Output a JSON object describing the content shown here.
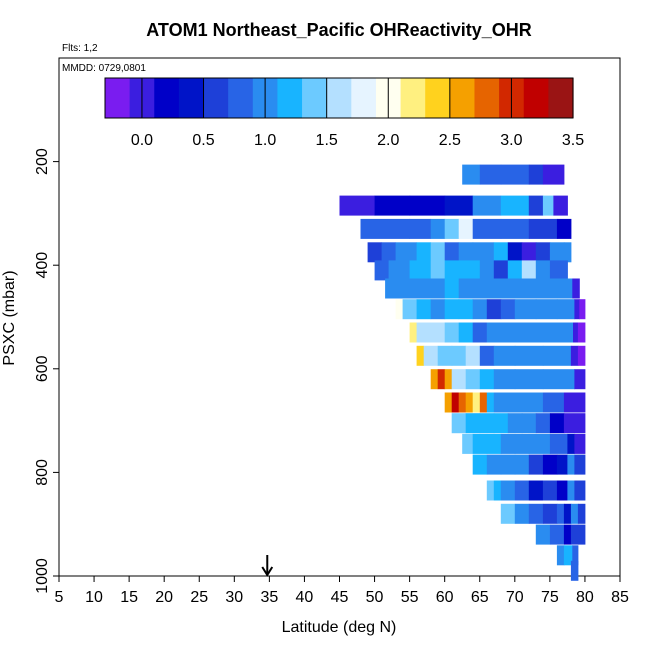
{
  "chart_data": {
    "type": "heatmap",
    "title": "ATOM1 Northeast_Pacific OHReactivity_OHR",
    "flights_label": "Flts: 1,2",
    "date_label": "MMDD: 0729,0801",
    "xlabel": "Latitude (deg N)",
    "ylabel": "PSXC (mbar)",
    "xlim": [
      5,
      85
    ],
    "ylim": [
      1000,
      0
    ],
    "x_ticks": [
      "5",
      "10",
      "15",
      "20",
      "25",
      "30",
      "35",
      "40",
      "45",
      "50",
      "55",
      "60",
      "65",
      "70",
      "75",
      "80",
      "85"
    ],
    "y_ticks": [
      "200",
      "400",
      "600",
      "800",
      "1000"
    ],
    "colorbar": {
      "range": [
        -0.3,
        3.5
      ],
      "tick_labels": [
        "0.0",
        "0.5",
        "1.0",
        "1.5",
        "2.0",
        "2.5",
        "3.0",
        "3.5"
      ],
      "colors": [
        "#7a1cf0",
        "#3b1ee0",
        "#0000c8",
        "#0014c8",
        "#1e40d8",
        "#2864e6",
        "#2a8cf0",
        "#18b4ff",
        "#6ccaff",
        "#b4e0ff",
        "#e6f4ff",
        "#fffff0",
        "#fff080",
        "#ffd21e",
        "#f5a000",
        "#e66400",
        "#d22800",
        "#c00000",
        "#9a1414"
      ]
    },
    "marker": {
      "latitude": 34.7,
      "symbol": "arrow"
    },
    "rows": [
      {
        "p": 225,
        "cells": [
          [
            62.5,
            65,
            0.9
          ],
          [
            65,
            68,
            0.8
          ],
          [
            68,
            72,
            0.85
          ],
          [
            72,
            74,
            0.5
          ],
          [
            74,
            77,
            -0.05
          ]
        ]
      },
      {
        "p": 285,
        "cells": [
          [
            45,
            50,
            0.05
          ],
          [
            50,
            55,
            0.1
          ],
          [
            55,
            60,
            0.2
          ],
          [
            60,
            64,
            0.35
          ],
          [
            64,
            68,
            0.95
          ],
          [
            68,
            72,
            1.1
          ],
          [
            72,
            74,
            0.6
          ],
          [
            74,
            75.5,
            1.3
          ],
          [
            75.5,
            77.5,
            0.0
          ]
        ]
      },
      {
        "p": 330,
        "cells": [
          [
            48,
            55,
            0.7
          ],
          [
            55,
            58,
            0.85
          ],
          [
            58,
            60,
            1.0
          ],
          [
            60,
            62,
            1.3
          ],
          [
            62,
            64,
            1.8
          ],
          [
            64,
            68,
            0.7
          ],
          [
            68,
            72,
            0.75
          ],
          [
            72,
            76,
            0.55
          ],
          [
            76,
            78,
            0.2
          ]
        ]
      },
      {
        "p": 375,
        "cells": [
          [
            49,
            51,
            0.5
          ],
          [
            51,
            53,
            0.7
          ],
          [
            53,
            56,
            1.0
          ],
          [
            56,
            58,
            1.1
          ],
          [
            58,
            60,
            1.3
          ],
          [
            60,
            62,
            0.85
          ],
          [
            62,
            64,
            0.9
          ],
          [
            64,
            67,
            0.95
          ],
          [
            67,
            69,
            1.1
          ],
          [
            69,
            71,
            0.3
          ],
          [
            71,
            73,
            0.05
          ],
          [
            73,
            75,
            0.6
          ],
          [
            75,
            77,
            0.9
          ],
          [
            77,
            78,
            1.0
          ]
        ]
      },
      {
        "p": 410,
        "cells": [
          [
            50,
            52,
            0.85
          ],
          [
            52,
            55,
            1.05
          ],
          [
            55,
            58,
            1.1
          ],
          [
            58,
            60,
            1.4
          ],
          [
            60,
            63,
            1.2
          ],
          [
            63,
            65,
            1.15
          ],
          [
            65,
            67,
            1.05
          ],
          [
            67,
            69,
            0.55
          ],
          [
            69,
            71,
            1.2
          ],
          [
            71,
            73,
            1.6
          ],
          [
            73,
            75,
            1.0
          ],
          [
            75,
            77.5,
            0.75
          ]
        ]
      },
      {
        "p": 445,
        "cells": [
          [
            51.5,
            53,
            0.9
          ],
          [
            53,
            57,
            1.05
          ],
          [
            57,
            60,
            1.05
          ],
          [
            60,
            62,
            1.1
          ],
          [
            62,
            65,
            1.05
          ],
          [
            65,
            69,
            0.95
          ],
          [
            69,
            73,
            1.05
          ],
          [
            73,
            76,
            0.95
          ],
          [
            76,
            78.2,
            0.9
          ],
          [
            78.2,
            79.2,
            0.0
          ]
        ]
      },
      {
        "p": 485,
        "cells": [
          [
            53,
            54,
            2.0
          ],
          [
            54,
            56,
            1.4
          ],
          [
            56,
            58,
            1.2
          ],
          [
            58,
            60,
            1.05
          ],
          [
            60,
            62,
            1.2
          ],
          [
            62,
            64,
            1.15
          ],
          [
            64,
            66,
            0.9
          ],
          [
            66,
            68,
            0.5
          ],
          [
            68,
            70,
            0.7
          ],
          [
            70,
            73,
            0.95
          ],
          [
            73,
            76,
            1.05
          ],
          [
            76,
            78.5,
            0.9
          ],
          [
            78.5,
            79.2,
            0.0
          ],
          [
            79.2,
            80,
            -0.3
          ]
        ]
      },
      {
        "p": 530,
        "cells": [
          [
            55,
            56,
            2.3
          ],
          [
            56,
            58,
            1.6
          ],
          [
            58,
            60,
            1.5
          ],
          [
            60,
            62,
            1.4
          ],
          [
            62,
            64,
            1.1
          ],
          [
            64,
            66,
            0.8
          ],
          [
            66,
            69,
            0.95
          ],
          [
            69,
            72,
            0.9
          ],
          [
            72,
            75,
            0.95
          ],
          [
            75,
            78.3,
            0.95
          ],
          [
            78.3,
            79,
            0.0
          ],
          [
            79,
            80,
            -0.3
          ]
        ]
      },
      {
        "p": 575,
        "cells": [
          [
            56,
            57,
            2.35
          ],
          [
            57,
            59,
            1.5
          ],
          [
            59,
            61,
            1.45
          ],
          [
            61,
            63,
            1.3
          ],
          [
            63,
            65,
            1.55
          ],
          [
            65,
            67,
            0.8
          ],
          [
            67,
            70,
            0.95
          ],
          [
            70,
            74,
            1.0
          ],
          [
            74,
            78,
            0.95
          ],
          [
            78,
            79,
            0.0
          ],
          [
            79,
            80,
            -0.2
          ]
        ]
      },
      {
        "p": 620,
        "cells": [
          [
            58,
            59,
            2.5
          ],
          [
            59,
            60,
            2.9
          ],
          [
            60,
            61,
            2.55
          ],
          [
            61,
            63,
            1.5
          ],
          [
            63,
            65,
            1.4
          ],
          [
            65,
            67,
            1.1
          ],
          [
            67,
            70,
            0.95
          ],
          [
            70,
            74,
            0.95
          ],
          [
            74,
            78.5,
            0.9
          ],
          [
            78.5,
            80,
            0.0
          ]
        ]
      },
      {
        "p": 665,
        "cells": [
          [
            60,
            61,
            2.5
          ],
          [
            61,
            62,
            3.1
          ],
          [
            62,
            63,
            2.8
          ],
          [
            63,
            64,
            2.5
          ],
          [
            64,
            65,
            2.2
          ],
          [
            65,
            66,
            2.7
          ],
          [
            66,
            67,
            1.1
          ],
          [
            67,
            69,
            1.0
          ],
          [
            69,
            71,
            0.95
          ],
          [
            71,
            74,
            0.95
          ],
          [
            74,
            77,
            0.8
          ],
          [
            77,
            80,
            0.0
          ]
        ]
      },
      {
        "p": 705,
        "cells": [
          [
            61,
            63,
            1.4
          ],
          [
            63,
            65,
            1.2
          ],
          [
            65,
            67,
            1.15
          ],
          [
            67,
            69,
            1.1
          ],
          [
            69,
            71,
            0.95
          ],
          [
            71,
            73,
            0.9
          ],
          [
            73,
            75,
            0.7
          ],
          [
            75,
            77,
            0.2
          ],
          [
            77,
            80,
            0.0
          ]
        ]
      },
      {
        "p": 745,
        "cells": [
          [
            62.5,
            64,
            1.4
          ],
          [
            64,
            66,
            1.2
          ],
          [
            66,
            68,
            1.1
          ],
          [
            68,
            70,
            1.0
          ],
          [
            70,
            72,
            0.95
          ],
          [
            72,
            75,
            0.9
          ],
          [
            75,
            77.5,
            0.85
          ],
          [
            77.5,
            78.5,
            0.4
          ],
          [
            78.5,
            80,
            0.0
          ]
        ]
      },
      {
        "p": 785,
        "cells": [
          [
            64,
            66,
            1.2
          ],
          [
            66,
            68,
            1.05
          ],
          [
            68,
            70,
            1.0
          ],
          [
            70,
            72,
            0.95
          ],
          [
            72,
            74,
            0.5
          ],
          [
            74,
            76,
            0.1
          ],
          [
            76,
            77.5,
            0.3
          ],
          [
            77.5,
            78.5,
            0.9
          ],
          [
            78.5,
            80,
            0.5
          ]
        ]
      },
      {
        "p": 835,
        "cells": [
          [
            66,
            67,
            1.4
          ],
          [
            67,
            68,
            1.1
          ],
          [
            68,
            70,
            0.95
          ],
          [
            70,
            72,
            0.8
          ],
          [
            72,
            74,
            0.3
          ],
          [
            74,
            76,
            0.5
          ],
          [
            76,
            77.5,
            0.1
          ],
          [
            77.5,
            78.5,
            0.9
          ],
          [
            78.5,
            80,
            0.5
          ]
        ]
      },
      {
        "p": 880,
        "cells": [
          [
            68,
            70,
            1.3
          ],
          [
            70,
            72,
            0.9
          ],
          [
            72,
            74,
            0.85
          ],
          [
            74,
            76,
            0.55
          ],
          [
            76,
            77,
            0.7
          ],
          [
            77,
            78,
            0.3
          ],
          [
            78,
            79,
            0.9
          ],
          [
            79,
            80,
            0.6
          ]
        ]
      },
      {
        "p": 920,
        "cells": [
          [
            73,
            75,
            1.05
          ],
          [
            75,
            77,
            0.75
          ],
          [
            77,
            78,
            0.15
          ],
          [
            78,
            79,
            0.5
          ],
          [
            79,
            80,
            0.6
          ]
        ]
      },
      {
        "p": 960,
        "cells": [
          [
            76,
            77,
            0.9
          ],
          [
            77,
            78.2,
            1.1
          ],
          [
            78.2,
            79,
            0.85
          ]
        ]
      },
      {
        "p": 990,
        "cells": [
          [
            78,
            79,
            0.8
          ]
        ]
      }
    ]
  }
}
